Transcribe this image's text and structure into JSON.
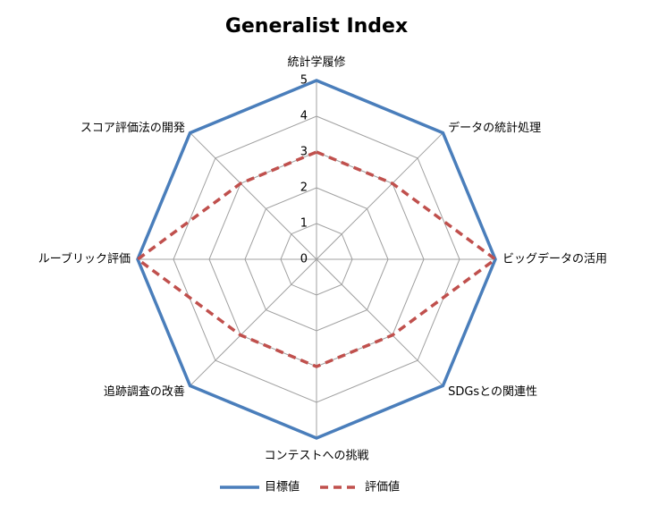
{
  "chart_data": {
    "type": "radar",
    "title": "Generalist Index",
    "categories": [
      "統計学履修",
      "データの統計処理",
      "ビッグデータの活用",
      "SDGsとの関連性",
      "コンテストへの挑戦",
      "追跡調査の改善",
      "ルーブリック評価",
      "スコア評価法の開発"
    ],
    "series": [
      {
        "name": "目標値",
        "color": "#4a7ebb",
        "values": [
          5,
          5,
          5,
          5,
          5,
          5,
          5,
          5
        ]
      },
      {
        "name": "評価値",
        "color": "#c0504d",
        "values": [
          3,
          3,
          5,
          3,
          3,
          3,
          5,
          3
        ]
      }
    ],
    "ylim": [
      0,
      5
    ],
    "yticks": [
      0,
      1,
      2,
      3,
      4,
      5
    ],
    "grid": true,
    "legend": "bottom"
  }
}
